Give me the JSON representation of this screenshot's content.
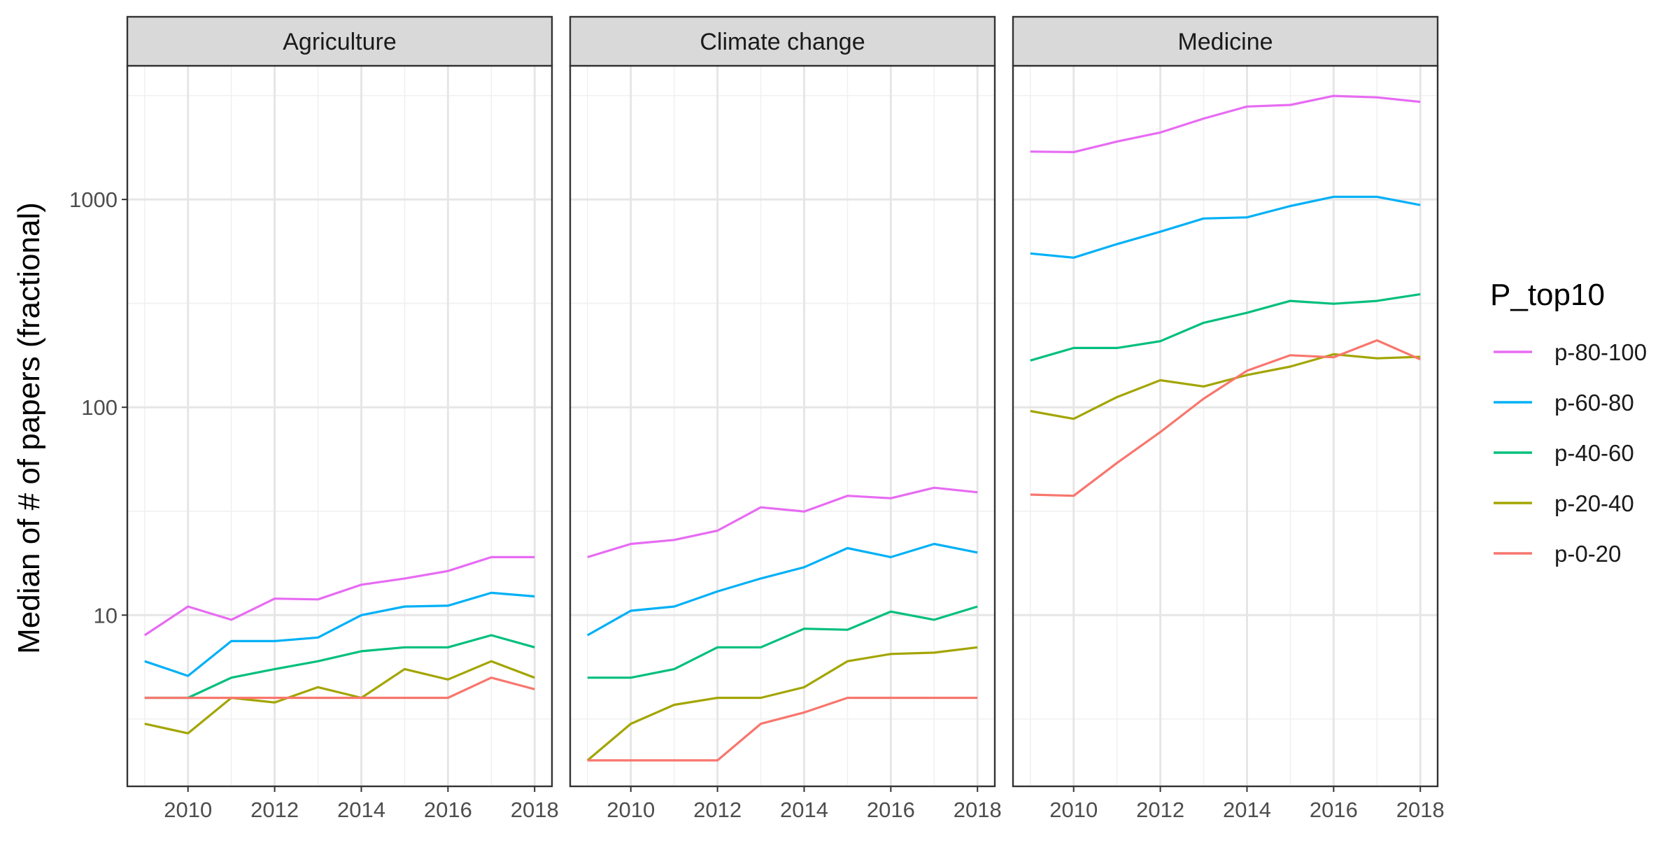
{
  "chart_data": {
    "type": "line",
    "ylabel": "Median of # of papers (fractional)",
    "xlabel": "",
    "y_scale": "log10",
    "ylim": [
      1.5,
      4400
    ],
    "xlim": [
      2008.6,
      2018.4
    ],
    "x_ticks": [
      2010,
      2012,
      2014,
      2016,
      2018
    ],
    "y_ticks": [
      10,
      100,
      1000
    ],
    "grid": true,
    "legend": {
      "title": "P_top10",
      "placement": "right",
      "entries": [
        "p-80-100",
        "p-60-80",
        "p-40-60",
        "p-20-40",
        "p-0-20"
      ]
    },
    "colors": {
      "p-80-100": "#E76BF3",
      "p-60-80": "#00B0F6",
      "p-40-60": "#00BF7D",
      "p-20-40": "#A3A500",
      "p-0-20": "#F8766D"
    },
    "x": [
      2009,
      2010,
      2011,
      2012,
      2013,
      2014,
      2015,
      2016,
      2017,
      2018
    ],
    "panels": [
      {
        "title": "Agriculture",
        "series": [
          {
            "name": "p-80-100",
            "values": [
              8,
              11,
              9.5,
              12,
              11.9,
              14,
              15,
              16.3,
              19,
              19
            ]
          },
          {
            "name": "p-60-80",
            "values": [
              6,
              5.1,
              7.5,
              7.5,
              7.8,
              10,
              11,
              11.1,
              12.8,
              12.3
            ]
          },
          {
            "name": "p-40-60",
            "values": [
              4,
              4,
              5,
              5.5,
              6,
              6.7,
              7,
              7,
              8,
              7
            ]
          },
          {
            "name": "p-20-40",
            "values": [
              3,
              2.7,
              4,
              3.8,
              4.5,
              4,
              5.5,
              4.9,
              6,
              5
            ]
          },
          {
            "name": "p-0-20",
            "values": [
              4,
              4,
              4,
              4,
              4,
              4,
              4,
              4,
              5,
              4.4
            ]
          }
        ]
      },
      {
        "title": "Climate change",
        "series": [
          {
            "name": "p-80-100",
            "values": [
              19,
              22,
              23,
              25.5,
              33,
              31.5,
              37.5,
              36.5,
              41,
              39
            ]
          },
          {
            "name": "p-60-80",
            "values": [
              8,
              10.5,
              11,
              13,
              15,
              17,
              21,
              19,
              22,
              20
            ]
          },
          {
            "name": "p-40-60",
            "values": [
              5,
              5,
              5.5,
              7,
              7,
              8.6,
              8.5,
              10.4,
              9.5,
              11
            ]
          },
          {
            "name": "p-20-40",
            "values": [
              2,
              3,
              3.7,
              4,
              4,
              4.5,
              6,
              6.5,
              6.6,
              7
            ]
          },
          {
            "name": "p-0-20",
            "values": [
              2,
              2,
              2,
              2,
              3,
              3.4,
              4,
              4,
              4,
              4
            ]
          }
        ]
      },
      {
        "title": "Medicine",
        "series": [
          {
            "name": "p-80-100",
            "values": [
              1700,
              1690,
              1900,
              2100,
              2450,
              2800,
              2850,
              3150,
              3100,
              2950
            ]
          },
          {
            "name": "p-60-80",
            "values": [
              550,
              525,
              610,
              700,
              810,
              820,
              930,
              1030,
              1030,
              940
            ]
          },
          {
            "name": "p-40-60",
            "values": [
              168,
              193,
              193,
              208,
              255,
              285,
              325,
              315,
              325,
              350
            ]
          },
          {
            "name": "p-20-40",
            "values": [
              96,
              88,
              112,
              135,
              126,
              143,
              157,
              180,
              172,
              175
            ]
          },
          {
            "name": "p-0-20",
            "values": [
              38,
              37.5,
              54,
              76,
              110,
              150,
              178,
              174,
              210,
              170
            ]
          }
        ]
      }
    ]
  }
}
